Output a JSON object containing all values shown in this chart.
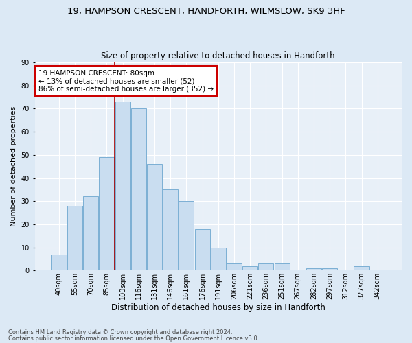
{
  "title1": "19, HAMPSON CRESCENT, HANDFORTH, WILMSLOW, SK9 3HF",
  "title2": "Size of property relative to detached houses in Handforth",
  "xlabel": "Distribution of detached houses by size in Handforth",
  "ylabel": "Number of detached properties",
  "footer1": "Contains HM Land Registry data © Crown copyright and database right 2024.",
  "footer2": "Contains public sector information licensed under the Open Government Licence v3.0.",
  "categories": [
    "40sqm",
    "55sqm",
    "70sqm",
    "85sqm",
    "100sqm",
    "116sqm",
    "131sqm",
    "146sqm",
    "161sqm",
    "176sqm",
    "191sqm",
    "206sqm",
    "221sqm",
    "236sqm",
    "251sqm",
    "267sqm",
    "282sqm",
    "297sqm",
    "312sqm",
    "327sqm",
    "342sqm"
  ],
  "values": [
    7,
    28,
    32,
    49,
    73,
    70,
    46,
    35,
    30,
    18,
    10,
    3,
    2,
    3,
    3,
    0,
    1,
    1,
    0,
    2,
    0
  ],
  "bar_color": "#c9ddf0",
  "bar_edge_color": "#7bafd4",
  "vline_x": 3.5,
  "vline_color": "#aa0000",
  "annotation_text": "19 HAMPSON CRESCENT: 80sqm\n← 13% of detached houses are smaller (52)\n86% of semi-detached houses are larger (352) →",
  "annotation_box_color": "#ffffff",
  "annotation_box_edge": "#cc0000",
  "ylim": [
    0,
    90
  ],
  "yticks": [
    0,
    10,
    20,
    30,
    40,
    50,
    60,
    70,
    80,
    90
  ],
  "background_color": "#dce9f5",
  "plot_bg_color": "#e8f0f8",
  "grid_color": "#ffffff",
  "title1_fontsize": 9.5,
  "title2_fontsize": 8.5,
  "ylabel_fontsize": 8,
  "xlabel_fontsize": 8.5,
  "tick_fontsize": 7,
  "footer_fontsize": 6,
  "annot_fontsize": 7.5
}
